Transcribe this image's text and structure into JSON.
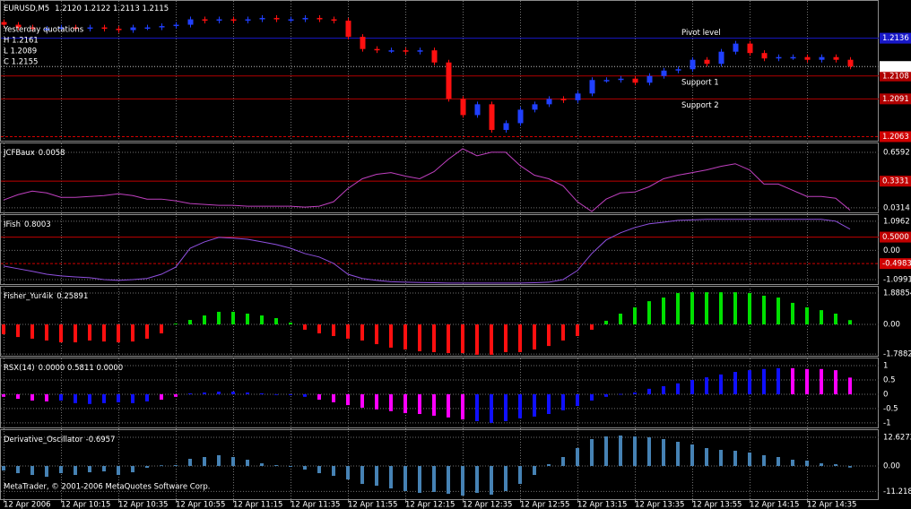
{
  "chart_data": [
    {
      "type": "candlestick",
      "symbol": "EURUSD,M5",
      "quote": "1.2120 1.2122 1.2113 1.2115",
      "notes": [
        "Yesterday quotations",
        "H 1.2161",
        "L 1.2089",
        "C 1.2155"
      ],
      "categories": [
        "12 Apr 2006",
        null,
        null,
        null,
        "12 Apr 10:15",
        null,
        null,
        null,
        "12 Apr 10:35",
        null,
        null,
        null,
        "12 Apr 10:55",
        null,
        null,
        null,
        "12 Apr 11:15",
        null,
        null,
        null,
        "12 Apr 11:35",
        null,
        null,
        null,
        "12 Apr 11:55",
        null,
        null,
        null,
        "12 Apr 12:15",
        null,
        null,
        null,
        "12 Apr 12:35",
        null,
        null,
        null,
        "12 Apr 12:55",
        null,
        null,
        null,
        "12 Apr 13:15",
        null,
        null,
        null,
        "12 Apr 13:35",
        null,
        null,
        null,
        "12 Apr 13:55",
        null,
        null,
        null,
        "12 Apr 14:15",
        null,
        null,
        null,
        "12 Apr 14:35",
        null,
        null,
        null
      ],
      "open": [
        1.2148,
        1.2146,
        1.2144,
        1.2143,
        1.2143,
        1.2144,
        1.2143,
        1.2144,
        1.2143,
        1.2142,
        1.2144,
        1.2144,
        1.2145,
        1.2146,
        1.215,
        1.2149,
        1.215,
        1.2149,
        1.215,
        1.2151,
        1.215,
        1.215,
        1.2151,
        1.215,
        1.2149,
        1.2137,
        1.2128,
        1.2127,
        1.2127,
        1.2126,
        1.2127,
        1.2118,
        1.2091,
        1.2079,
        1.2087,
        1.2068,
        1.2073,
        1.2083,
        1.2087,
        1.2091,
        1.209,
        1.2095,
        1.2105,
        1.2105,
        1.2106,
        1.2103,
        1.2108,
        1.2112,
        1.2113,
        1.212,
        1.2117,
        1.2126,
        1.2132,
        1.2125,
        1.2121,
        1.2122,
        1.2122,
        1.212,
        1.2122,
        1.212
      ],
      "high": [
        1.215,
        1.2148,
        1.2146,
        1.2145,
        1.2146,
        1.2146,
        1.2146,
        1.2146,
        1.2145,
        1.2146,
        1.2146,
        1.2147,
        1.2148,
        1.2152,
        1.2152,
        1.2152,
        1.2152,
        1.2152,
        1.2153,
        1.2153,
        1.2152,
        1.2153,
        1.2153,
        1.2152,
        1.2151,
        1.2139,
        1.213,
        1.2129,
        1.2129,
        1.2129,
        1.2129,
        1.212,
        1.2093,
        1.2089,
        1.2089,
        1.2075,
        1.2085,
        1.2089,
        1.2093,
        1.2093,
        1.2097,
        1.2107,
        1.2107,
        1.2108,
        1.2108,
        1.211,
        1.2114,
        1.2115,
        1.2122,
        1.2122,
        1.2128,
        1.2134,
        1.2134,
        1.2127,
        1.2124,
        1.2124,
        1.2124,
        1.2124,
        1.2124,
        1.2122
      ],
      "low": [
        1.2144,
        1.2142,
        1.2141,
        1.2141,
        1.2141,
        1.2141,
        1.2141,
        1.2141,
        1.214,
        1.214,
        1.2142,
        1.2142,
        1.2143,
        1.2144,
        1.2147,
        1.2147,
        1.2147,
        1.2147,
        1.2148,
        1.2148,
        1.2148,
        1.2148,
        1.2148,
        1.2147,
        1.2135,
        1.2126,
        1.2125,
        1.2125,
        1.2124,
        1.2124,
        1.2116,
        1.2089,
        1.2077,
        1.2077,
        1.2066,
        1.2066,
        1.2071,
        1.2081,
        1.2085,
        1.2088,
        1.2088,
        1.2093,
        1.2103,
        1.2103,
        1.2101,
        1.2101,
        1.2106,
        1.211,
        1.2111,
        1.2115,
        1.2115,
        1.2124,
        1.2123,
        1.2119,
        1.2119,
        1.212,
        1.2118,
        1.2118,
        1.2118,
        1.2113
      ],
      "close": [
        1.2146,
        1.2144,
        1.2143,
        1.2143,
        1.2144,
        1.2143,
        1.2144,
        1.2143,
        1.2142,
        1.2144,
        1.2144,
        1.2145,
        1.2146,
        1.215,
        1.2149,
        1.215,
        1.2149,
        1.215,
        1.2151,
        1.215,
        1.215,
        1.2151,
        1.215,
        1.2149,
        1.2137,
        1.2128,
        1.2127,
        1.2127,
        1.2126,
        1.2127,
        1.2118,
        1.2091,
        1.2079,
        1.2087,
        1.2068,
        1.2073,
        1.2083,
        1.2087,
        1.2091,
        1.209,
        1.2095,
        1.2105,
        1.2105,
        1.2106,
        1.2103,
        1.2108,
        1.2112,
        1.2113,
        1.212,
        1.2117,
        1.2126,
        1.2132,
        1.2125,
        1.2121,
        1.2122,
        1.2122,
        1.212,
        1.2122,
        1.212,
        1.2115
      ],
      "up_color": "#2040ff",
      "down_color": "#ff1010",
      "ylim": [
        1.206,
        1.2163
      ],
      "levels": [
        {
          "name": "Pivot level",
          "value": 1.2136,
          "color": "#1818c8"
        },
        {
          "name": "Support 1",
          "value": 1.2108,
          "color": "#b00000"
        },
        {
          "name": "Support 2",
          "value": 1.2091,
          "color": "#b00000"
        },
        {
          "value": 1.2063,
          "color": "#d00000",
          "dashed": true
        }
      ]
    },
    {
      "type": "line",
      "title": "JCFBaux",
      "color": "#c040c0",
      "values": [
        0.12,
        0.18,
        0.22,
        0.2,
        0.15,
        0.15,
        0.16,
        0.17,
        0.19,
        0.17,
        0.13,
        0.13,
        0.11,
        0.08,
        0.07,
        0.06,
        0.06,
        0.05,
        0.05,
        0.05,
        0.05,
        0.04,
        0.05,
        0.1,
        0.25,
        0.36,
        0.41,
        0.43,
        0.39,
        0.36,
        0.44,
        0.58,
        0.7,
        0.62,
        0.66,
        0.66,
        0.51,
        0.4,
        0.36,
        0.28,
        0.1,
        -0.01,
        0.13,
        0.2,
        0.21,
        0.27,
        0.36,
        0.4,
        0.43,
        0.46,
        0.5,
        0.53,
        0.46,
        0.3,
        0.3,
        0.23,
        0.16,
        0.16,
        0.14,
        0.0058
      ],
      "ylim": [
        -0.02,
        0.76
      ],
      "yticks": [
        0.6592,
        0.0314
      ],
      "levels": [
        {
          "value": 0.3331,
          "color": "#c00000"
        }
      ]
    },
    {
      "type": "line",
      "title": "IFish",
      "color": "#9050e0",
      "values": [
        -0.59,
        -0.69,
        -0.79,
        -0.9,
        -0.96,
        -1.0,
        -1.03,
        -1.1,
        -1.13,
        -1.1,
        -1.06,
        -0.9,
        -0.63,
        0.08,
        0.32,
        0.49,
        0.46,
        0.42,
        0.32,
        0.22,
        0.08,
        -0.12,
        -0.25,
        -0.49,
        -0.9,
        -1.06,
        -1.13,
        -1.18,
        -1.2,
        -1.21,
        -1.22,
        -1.23,
        -1.23,
        -1.23,
        -1.23,
        -1.23,
        -1.23,
        -1.22,
        -1.2,
        -1.1,
        -0.76,
        -0.12,
        0.39,
        0.66,
        0.86,
        1.0,
        1.06,
        1.13,
        1.15,
        1.17,
        1.17,
        1.17,
        1.17,
        1.17,
        1.17,
        1.17,
        1.17,
        1.17,
        1.1,
        0.8003
      ],
      "ylim": [
        -1.27,
        1.33
      ],
      "yticks": [
        1.0962,
        {
          "value": 0,
          "label": "0.00"
        },
        -1.0991
      ],
      "levels": [
        {
          "value": 0.5,
          "label": "0.5000",
          "color": "#c00000"
        },
        {
          "value": -0.4983,
          "color": "#d00000",
          "dashed": true
        }
      ]
    },
    {
      "type": "bar",
      "title": "Fisher_Yur4ik",
      "pos_color": "#00e000",
      "neg_color": "#ff1010",
      "values": [
        -0.59,
        -0.76,
        -0.86,
        -0.97,
        -1.08,
        -1.08,
        -0.97,
        -1.03,
        -1.08,
        -1.03,
        -0.86,
        -0.54,
        0.05,
        0.27,
        0.54,
        0.76,
        0.76,
        0.65,
        0.54,
        0.38,
        0.11,
        -0.32,
        -0.54,
        -0.7,
        -0.86,
        -0.97,
        -1.19,
        -1.4,
        -1.51,
        -1.62,
        -1.67,
        -1.73,
        -1.73,
        -1.83,
        -1.83,
        -1.67,
        -1.67,
        -1.51,
        -1.3,
        -0.97,
        -0.7,
        -0.32,
        0.22,
        0.65,
        1.03,
        1.4,
        1.62,
        1.89,
        1.94,
        1.94,
        1.94,
        1.94,
        1.89,
        1.73,
        1.62,
        1.3,
        1.03,
        0.86,
        0.65,
        0.25891
      ],
      "ylim": [
        -1.89,
        2.27
      ],
      "yticks": [
        1.88854,
        {
          "value": 0,
          "label": "0.00"
        },
        -1.78827
      ]
    },
    {
      "type": "bar",
      "title": "RSX(14)",
      "status": "0.0000 0.5811 0.0000",
      "values": [
        -0.09,
        -0.16,
        -0.22,
        -0.25,
        -0.22,
        -0.31,
        -0.34,
        -0.31,
        -0.28,
        -0.31,
        -0.25,
        -0.19,
        -0.09,
        0.03,
        0.06,
        0.09,
        0.09,
        0.06,
        0.03,
        -0.02,
        -0.03,
        -0.09,
        -0.19,
        -0.28,
        -0.38,
        -0.47,
        -0.53,
        -0.59,
        -0.66,
        -0.69,
        -0.75,
        -0.81,
        -0.88,
        -0.94,
        -1.0,
        -0.94,
        -0.84,
        -0.78,
        -0.69,
        -0.56,
        -0.41,
        -0.22,
        -0.09,
        0.01,
        0.06,
        0.19,
        0.28,
        0.38,
        0.5,
        0.59,
        0.69,
        0.78,
        0.84,
        0.88,
        0.91,
        0.91,
        0.88,
        0.88,
        0.84,
        0.5811
      ],
      "colors": [
        "#ff00ff",
        "#ff00ff",
        "#ff00ff",
        "#ff00ff",
        "#1010ff",
        "#1010ff",
        "#1010ff",
        "#1010ff",
        "#1010ff",
        "#1010ff",
        "#1010ff",
        "#ff00ff",
        "#ff00ff",
        "#1010ff",
        "#1010ff",
        "#1010ff",
        "#1010ff",
        "#1010ff",
        "#1010ff",
        "#1010ff",
        "#1010ff",
        "#1010ff",
        "#ff00ff",
        "#ff00ff",
        "#ff00ff",
        "#ff00ff",
        "#ff00ff",
        "#ff00ff",
        "#ff00ff",
        "#ff00ff",
        "#ff00ff",
        "#ff00ff",
        "#ff00ff",
        "#1010ff",
        "#1010ff",
        "#1010ff",
        "#1010ff",
        "#1010ff",
        "#1010ff",
        "#1010ff",
        "#1010ff",
        "#1010ff",
        "#1010ff",
        "#1010ff",
        "#1010ff",
        "#1010ff",
        "#1010ff",
        "#1010ff",
        "#1010ff",
        "#1010ff",
        "#1010ff",
        "#1010ff",
        "#1010ff",
        "#1010ff",
        "#1010ff",
        "#ff00ff",
        "#ff00ff",
        "#ff00ff",
        "#ff00ff",
        "#ff00ff"
      ],
      "ylim": [
        -1.16,
        1.25
      ],
      "yticks": [
        1,
        0.5,
        0,
        -0.5,
        -1
      ]
    },
    {
      "type": "bar",
      "title": "Derivative_Oscillator",
      "color": "#4682b4",
      "footer": "MetaTrader, © 2001-2006 MetaQuotes Software Corp.",
      "values": [
        -1.97,
        -3.16,
        -3.95,
        -4.74,
        -3.16,
        -3.95,
        -2.76,
        -2.37,
        -3.95,
        -2.76,
        -0.79,
        0.3,
        0.39,
        3.16,
        3.95,
        4.74,
        3.95,
        2.76,
        1.18,
        0.39,
        -0.39,
        -1.58,
        -3.16,
        -4.34,
        -5.92,
        -7.89,
        -8.68,
        -9.87,
        -11.05,
        -11.84,
        -11.44,
        -12.23,
        -13.02,
        -11.84,
        -12.63,
        -11.05,
        -7.89,
        -3.95,
        0.79,
        3.95,
        7.89,
        11.84,
        13.02,
        13.42,
        13.02,
        12.63,
        11.84,
        10.66,
        9.47,
        7.89,
        7.1,
        6.71,
        5.92,
        4.74,
        3.95,
        2.76,
        2.37,
        1.18,
        0.79,
        -0.6957
      ],
      "ylim": [
        -14.6,
        15.79
      ],
      "yticks": [
        12.6272,
        {
          "value": 0,
          "label": "0.00"
        },
        -11.2189
      ]
    }
  ]
}
